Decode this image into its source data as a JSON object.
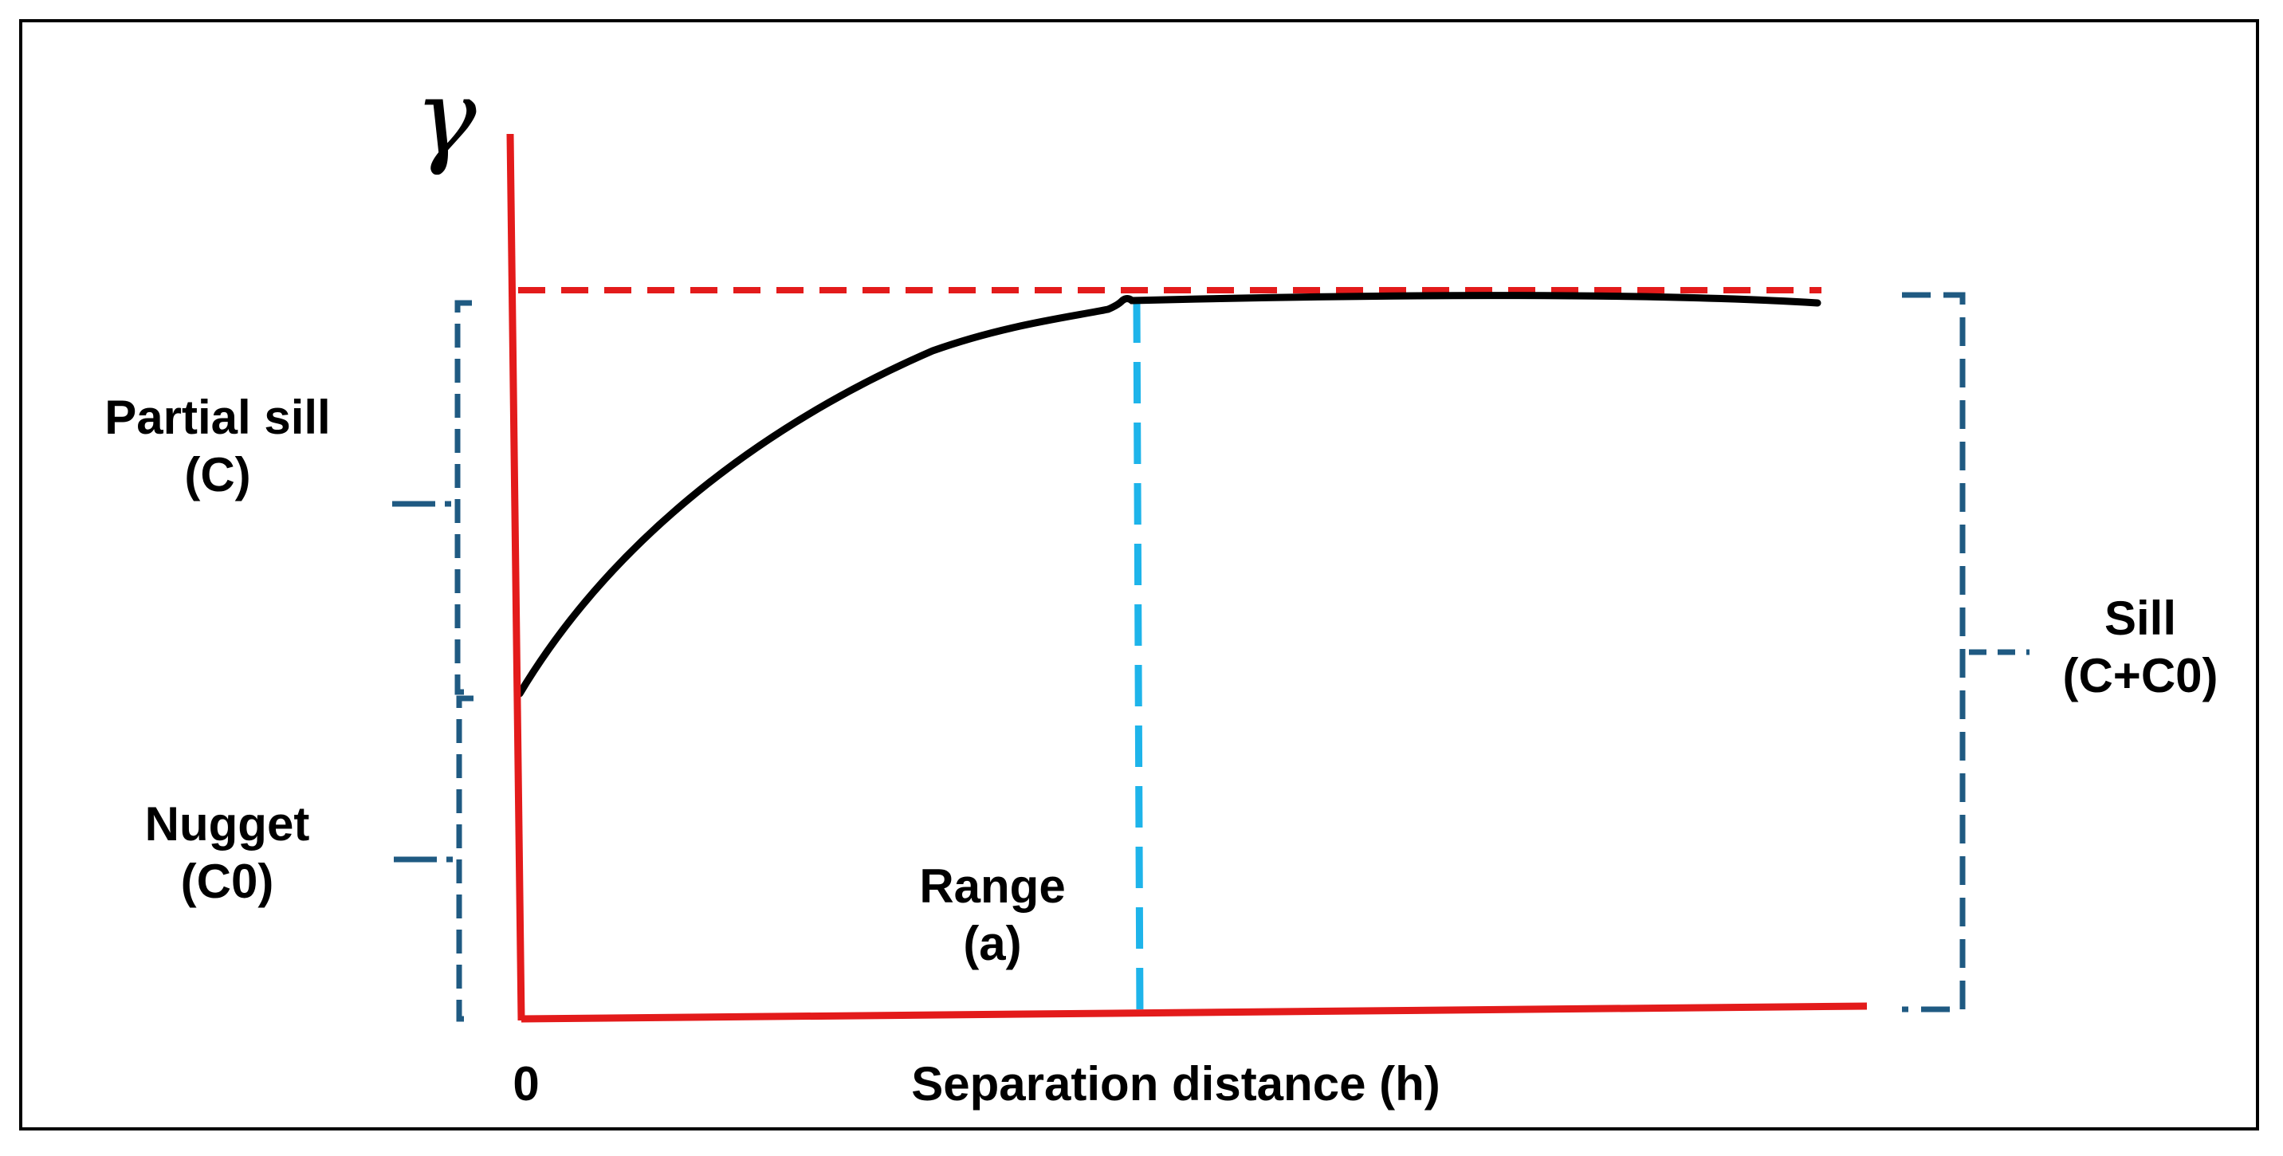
{
  "diagram": {
    "y_axis_symbol": "γ",
    "origin_label": "0",
    "x_axis_label": "Separation distance (h)",
    "labels": {
      "partial_sill": {
        "name": "Partial sill",
        "symbol": "(C)"
      },
      "nugget": {
        "name": "Nugget",
        "symbol": "(C0)"
      },
      "range": {
        "name": "Range",
        "symbol": "(a)"
      },
      "sill": {
        "name": "Sill",
        "symbol": "(C+C0)"
      }
    },
    "colors": {
      "axis": "#e31b1b",
      "sill_line": "#e31b1b",
      "curve": "#000000",
      "range_line": "#1eb4ea",
      "brackets": "#1f5a82"
    }
  }
}
